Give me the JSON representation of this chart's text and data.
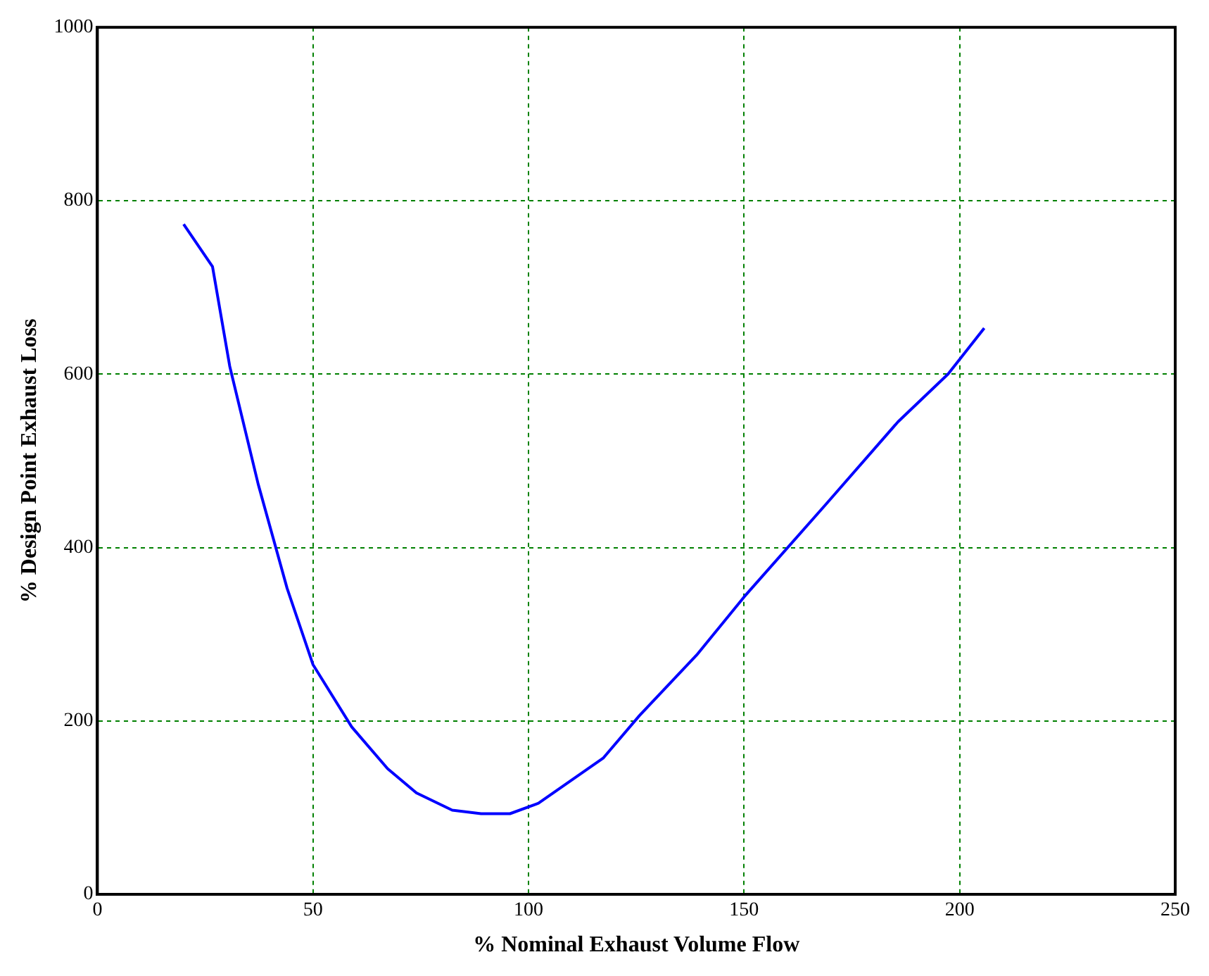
{
  "chart_data": {
    "type": "line",
    "xlabel": "% Nominal Exhaust Volume Flow",
    "ylabel": "% Design Point Exhaust Loss",
    "series": [
      {
        "color": "#0000ff",
        "x": [
          20,
          26.7,
          30.7,
          37.3,
          44,
          50,
          59,
          67.3,
          74,
          82.3,
          89,
          95.7,
          102.3,
          117.3,
          125.7,
          139,
          150,
          169,
          185.7,
          197.3,
          205.7
        ],
        "values": [
          773,
          724,
          609,
          473,
          353,
          265,
          193,
          145,
          117,
          97,
          93,
          93,
          105,
          157,
          206,
          276,
          343,
          450,
          545,
          600,
          653
        ]
      }
    ],
    "xlim": [
      0,
      250
    ],
    "xticks": [
      0,
      50,
      100,
      150,
      200,
      250
    ],
    "ylim": [
      0,
      1000
    ],
    "yticks": [
      0,
      200,
      400,
      600,
      800,
      1000
    ],
    "grid": true,
    "legend": false,
    "marker": "none",
    "line_style": "solid"
  }
}
